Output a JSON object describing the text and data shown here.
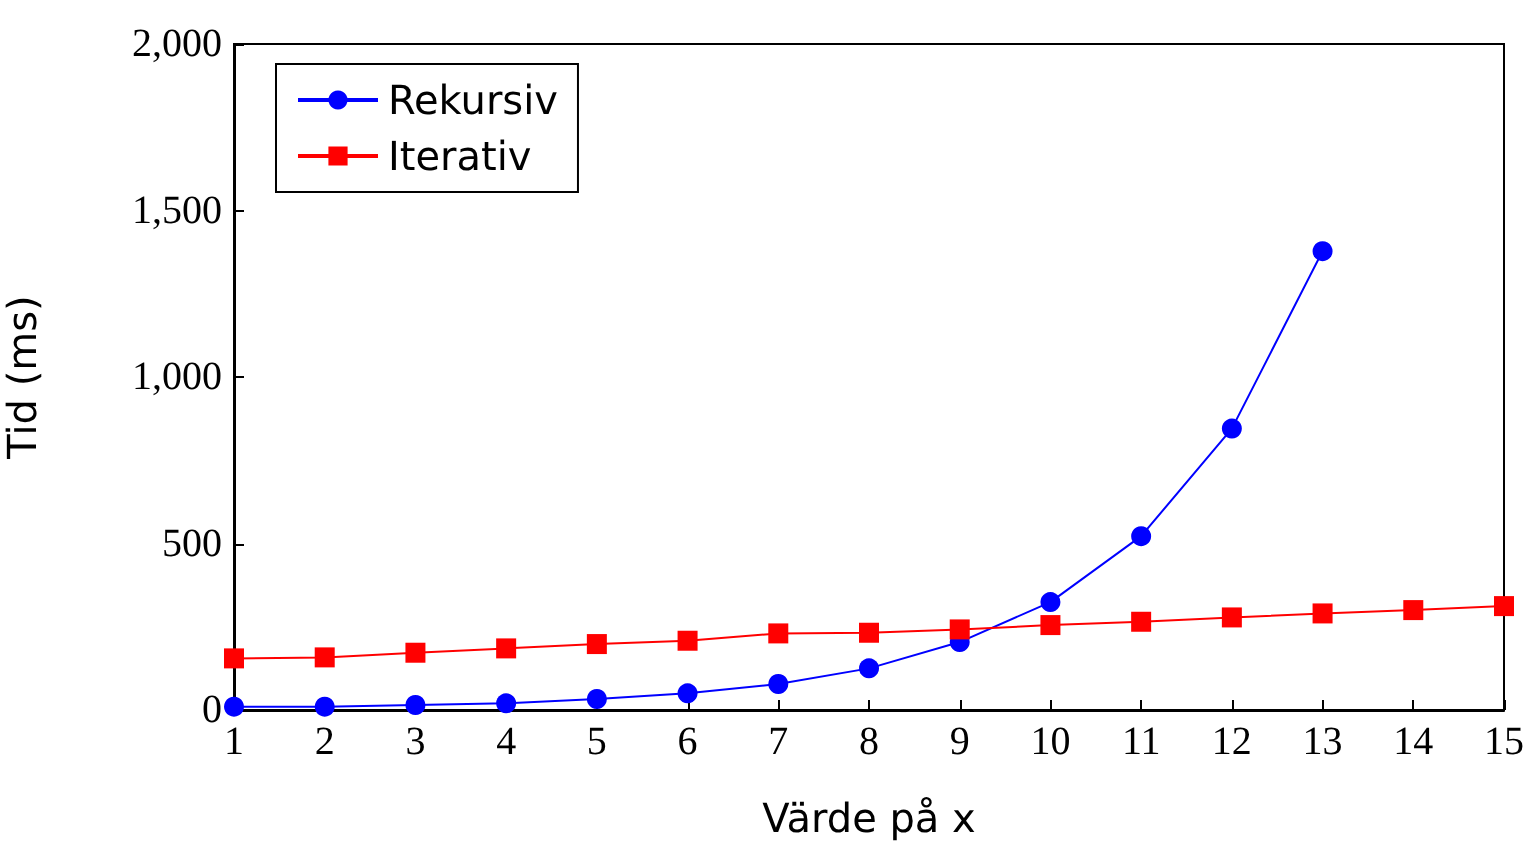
{
  "chart_data": {
    "type": "line",
    "xlabel": "Värde på x",
    "ylabel": "Tid (ms)",
    "x": [
      1,
      2,
      3,
      4,
      5,
      6,
      7,
      8,
      9,
      10,
      11,
      12,
      13,
      14,
      15
    ],
    "series": [
      {
        "name": "Rekursiv",
        "color": "#0000ff",
        "marker": "circle",
        "values": [
          10,
          10,
          15,
          20,
          33,
          50,
          78,
          125,
          204,
          324,
          522,
          845,
          1378,
          null,
          null
        ]
      },
      {
        "name": "Iterativ",
        "color": "#ff0000",
        "marker": "square",
        "values": [
          155,
          158,
          172,
          185,
          198,
          208,
          230,
          232,
          242,
          255,
          265,
          278,
          290,
          300,
          312
        ]
      }
    ],
    "xlim": [
      1,
      15
    ],
    "xticks": [
      1,
      2,
      3,
      4,
      5,
      6,
      7,
      8,
      9,
      10,
      11,
      12,
      13,
      14,
      15
    ],
    "ylim": [
      0,
      2000
    ],
    "yticks": [
      0,
      500,
      {
        "value": 1000,
        "label": "1,000"
      },
      {
        "value": 1500,
        "label": "1,500"
      },
      {
        "value": 2000,
        "label": "2,000"
      }
    ],
    "grid": false,
    "legend": "top left",
    "line_style": "solid"
  }
}
